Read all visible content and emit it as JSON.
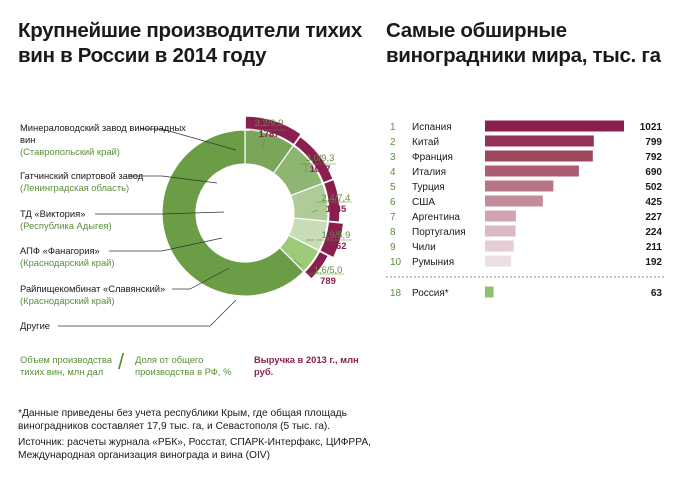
{
  "left_title": "Крупнейшие производители тихих вин в России в 2014 году",
  "right_title": "Самые обширные виноградники мира, тыс. га",
  "producers": [
    {
      "name": "Минераловодский завод виноградных вин",
      "region": "(Ставропольский край)"
    },
    {
      "name": "Гатчинский спиртовой завод",
      "region": "(Ленинградская область)"
    },
    {
      "name": "ТД «Виктория»",
      "region": "(Республика Адыгея)"
    },
    {
      "name": "АПФ «Фанагория»",
      "region": "(Краснодарский край)"
    },
    {
      "name": "Райпищекомбинат «Славянский»",
      "region": "(Краснодарский край)"
    },
    {
      "name": "Другие",
      "region": ""
    }
  ],
  "segment_labels": [
    {
      "volume_share": "3,2/9,9",
      "revenue": "1787"
    },
    {
      "volume_share": "3,0/9,3",
      "revenue": "1007"
    },
    {
      "volume_share": "2,4/7,4",
      "revenue": "1145"
    },
    {
      "volume_share": "1,9/5,9",
      "revenue": "2462"
    },
    {
      "volume_share": "1,6/5,0",
      "revenue": "789"
    }
  ],
  "legend": {
    "volume": "Объем производства тихих вин, млн дал",
    "separator": "/",
    "share": "Доля от общего производства в РФ, %",
    "revenue": "Выручка в 2013 г., млн руб."
  },
  "footnote": "*Данные приведены без учета республики Крым, где общая площадь виноградников составляет 17,9 тыс. га, и Севастополя (5 тыс. га).",
  "source": "Источник: расчеты журнала «РБК», Росстат, СПАРК-Интерфакс, ЦИФРРА, Международная организация винограда и вина (OIV)",
  "colors": {
    "green_dark": "#6a9d45",
    "maroon": "#8a1f4f",
    "text_green": "#5a8f3a"
  },
  "chart_data": [
    {
      "type": "pie",
      "title": "Крупнейшие производители тихих вин в России в 2014 году",
      "categories": [
        "Минераловодский завод виноградных вин",
        "Гатчинский спиртовой завод",
        "ТД «Виктория»",
        "АПФ «Фанагория»",
        "Райпищекомбинат «Славянский»",
        "Другие"
      ],
      "series": [
        {
          "name": "Объем производства тихих вин, млн дал",
          "values": [
            3.2,
            3.0,
            2.4,
            1.9,
            1.6,
            20.2
          ]
        },
        {
          "name": "Доля от общего производства в РФ, %",
          "values": [
            9.9,
            9.3,
            7.4,
            5.9,
            5.0,
            62.5
          ]
        },
        {
          "name": "Выручка в 2013 г., млн руб.",
          "values": [
            1787,
            1007,
            1145,
            2462,
            789,
            null
          ]
        }
      ]
    },
    {
      "type": "bar",
      "orientation": "horizontal",
      "title": "Самые обширные виноградники мира, тыс. га",
      "ranks": [
        "1",
        "2",
        "3",
        "4",
        "5",
        "6",
        "7",
        "8",
        "9",
        "10",
        "18"
      ],
      "categories": [
        "Испания",
        "Китай",
        "Франция",
        "Италия",
        "Турция",
        "США",
        "Аргентина",
        "Португалия",
        "Чили",
        "Румыния",
        "Россия*"
      ],
      "values": [
        1021,
        799,
        792,
        690,
        502,
        425,
        227,
        224,
        211,
        192,
        63
      ],
      "bar_colors": [
        "#8a1f4f",
        "#953257",
        "#a04760",
        "#ac5d72",
        "#b77486",
        "#c38c9b",
        "#cfa3b0",
        "#dab9c4",
        "#e4cdd5",
        "#eddfe4",
        "#8cc26e"
      ]
    }
  ]
}
